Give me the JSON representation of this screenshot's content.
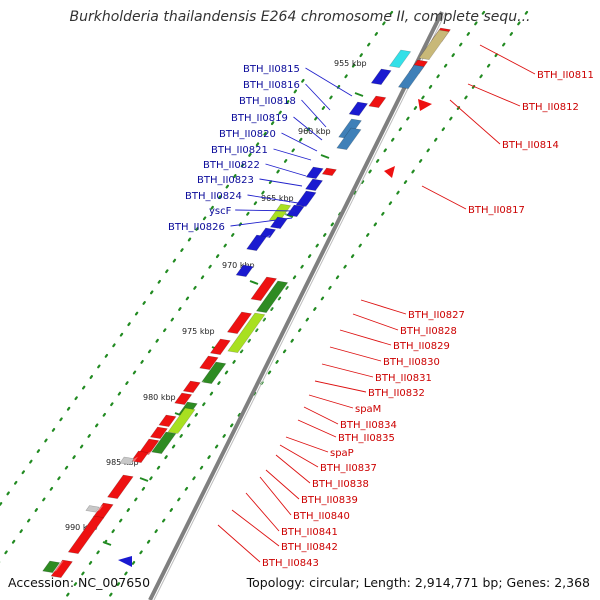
{
  "title": "Burkholderia thailandensis E264 chromosome II, complete sequ...",
  "footer": {
    "accession": "Accession: NC_007650",
    "topology": "Topology: circular; Length: 2,914,771 bp; Genes: 2,368"
  },
  "colors": {
    "backbone": "#7f7f7f",
    "forward_label": "#cc0000",
    "reverse_label": "#0a0a9a",
    "forward_gene": "#ee1111",
    "reverse_gene": "#1a1ad0",
    "lightgreen_gene": "#a8e020",
    "darkgreen_gene": "#2e8b22",
    "steelblue_gene": "#3f80b8",
    "cyan_gene": "#33e0e8",
    "khaki_gene": "#c8b878",
    "grey_gene": "#c8c8c8",
    "dots": "#228b22"
  },
  "scale": {
    "ticks": [
      "955 kbp",
      "960 kbp",
      "965 kbp",
      "970 kbp",
      "975 kbp",
      "980 kbp",
      "985 kbp",
      "990 kbp"
    ]
  },
  "labels": {
    "reverse": [
      "BTH_II0815",
      "BTH_II0816",
      "BTH_II0818",
      "BTH_II0819",
      "BTH_II0820",
      "BTH_II0821",
      "BTH_II0822",
      "BTH_II0823",
      "BTH_II0824",
      "yscF",
      "BTH_II0826"
    ],
    "forward": [
      "BTH_II0811",
      "BTH_II0812",
      "BTH_II0814",
      "BTH_II0817",
      "BTH_II0827",
      "BTH_II0828",
      "BTH_II0829",
      "BTH_II0830",
      "BTH_II0831",
      "BTH_II0832",
      "spaM",
      "BTH_II0834",
      "BTH_II0835",
      "spaP",
      "BTH_II0837",
      "BTH_II0838",
      "BTH_II0839",
      "BTH_II0840",
      "BTH_II0841",
      "BTH_II0842",
      "BTH_II0843"
    ]
  },
  "genes": [
    {
      "strand": "+",
      "color": "forward_gene"
    },
    {
      "strand": "+",
      "color": "khaki_gene"
    },
    {
      "strand": "+",
      "color": "forward_gene"
    },
    {
      "strand": "+",
      "color": "steelblue_gene"
    },
    {
      "strand": "+",
      "color": "forward_gene"
    },
    {
      "strand": "+",
      "color": "forward_gene"
    },
    {
      "strand": "-",
      "color": "cyan_gene"
    },
    {
      "strand": "-",
      "color": "reverse_gene"
    },
    {
      "strand": "-",
      "color": "reverse_gene"
    },
    {
      "strand": "-",
      "color": "steelblue_gene"
    },
    {
      "strand": "-",
      "color": "steelblue_gene"
    },
    {
      "strand": "-",
      "color": "reverse_gene"
    },
    {
      "strand": "-",
      "color": "reverse_gene"
    },
    {
      "strand": "-",
      "color": "reverse_gene"
    },
    {
      "strand": "-",
      "color": "reverse_gene"
    },
    {
      "strand": "-",
      "color": "lightgreen_gene"
    },
    {
      "strand": "-",
      "color": "reverse_gene"
    },
    {
      "strand": "-",
      "color": "reverse_gene"
    },
    {
      "strand": "-",
      "color": "reverse_gene"
    },
    {
      "strand": "-",
      "color": "reverse_gene"
    },
    {
      "strand": "+",
      "color": "forward_gene"
    },
    {
      "strand": "+",
      "color": "darkgreen_gene"
    },
    {
      "strand": "+",
      "color": "forward_gene"
    },
    {
      "strand": "+",
      "color": "lightgreen_gene"
    },
    {
      "strand": "+",
      "color": "forward_gene"
    },
    {
      "strand": "+",
      "color": "forward_gene"
    },
    {
      "strand": "+",
      "color": "darkgreen_gene"
    },
    {
      "strand": "+",
      "color": "forward_gene"
    },
    {
      "strand": "+",
      "color": "forward_gene"
    },
    {
      "strand": "+",
      "color": "darkgreen_gene"
    },
    {
      "strand": "+",
      "color": "forward_gene"
    },
    {
      "strand": "+",
      "color": "lightgreen_gene"
    },
    {
      "strand": "+",
      "color": "forward_gene"
    },
    {
      "strand": "+",
      "color": "forward_gene"
    },
    {
      "strand": "+",
      "color": "darkgreen_gene"
    },
    {
      "strand": "+",
      "color": "forward_gene"
    },
    {
      "strand": "+",
      "color": "grey_gene"
    },
    {
      "strand": "+",
      "color": "forward_gene"
    },
    {
      "strand": "+",
      "color": "forward_gene"
    },
    {
      "strand": "+",
      "color": "grey_gene"
    },
    {
      "strand": "+",
      "color": "forward_gene"
    },
    {
      "strand": "+",
      "color": "forward_gene"
    },
    {
      "strand": "+",
      "color": "darkgreen_gene"
    },
    {
      "strand": "-",
      "color": "reverse_gene"
    }
  ]
}
